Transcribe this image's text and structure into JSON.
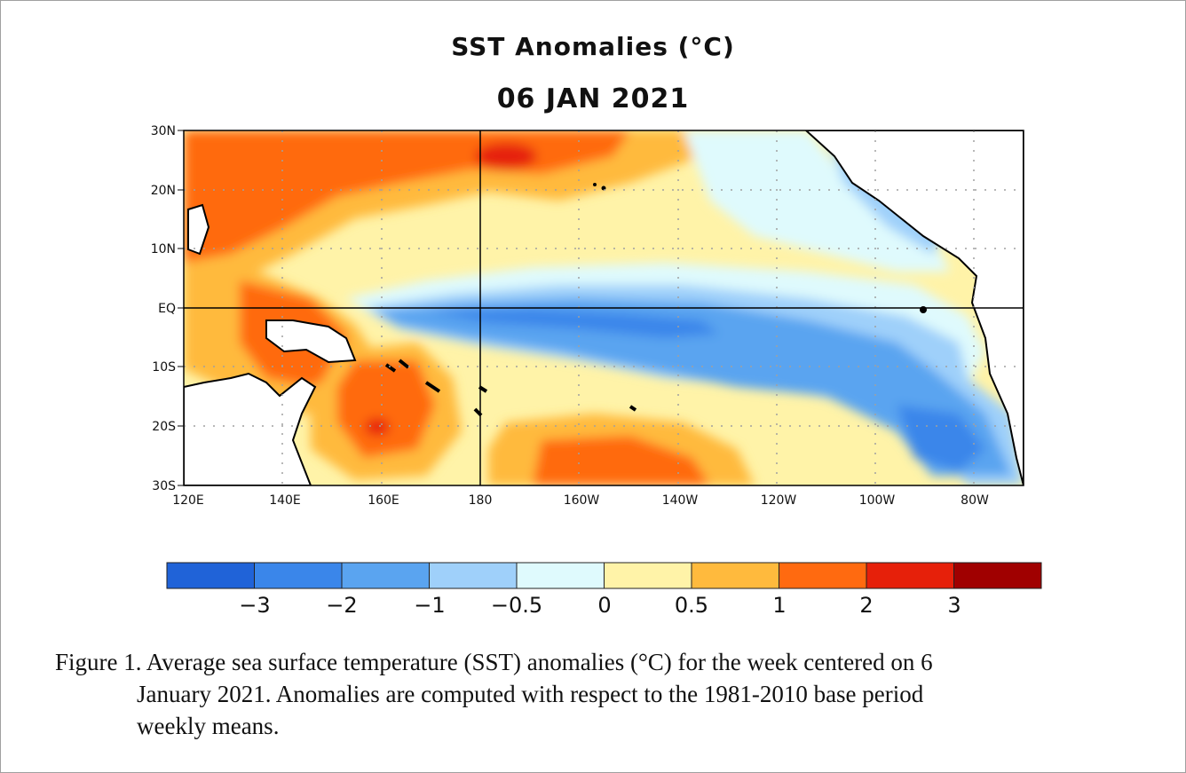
{
  "figure": {
    "title": "SST Anomalies (°C)",
    "date": "06 JAN 2021"
  },
  "map": {
    "lat_labels": [
      "30N",
      "20N",
      "10N",
      "EQ",
      "10S",
      "20S",
      "30S"
    ],
    "lon_labels": [
      "120E",
      "140E",
      "160E",
      "180",
      "160W",
      "140W",
      "120W",
      "100W",
      "80W"
    ],
    "extent": {
      "lon_min_east": 120,
      "lon_max_east": 290,
      "lat_min": -30,
      "lat_max": 30
    },
    "grid": "dotted",
    "land_color": "#ffffff"
  },
  "colorbar": {
    "colors": [
      "#2063d8",
      "#3a86ea",
      "#5aa4f0",
      "#9fd0fa",
      "#dffafd",
      "#fff3a8",
      "#ffba3d",
      "#ff6a10",
      "#e6200a",
      "#a00000"
    ],
    "tick_labels": [
      "−3",
      "−2",
      "−1",
      "−0.5",
      "0",
      "0.5",
      "1",
      "2",
      "3"
    ]
  },
  "caption": {
    "line1": "Figure  1. Average sea surface temperature (SST) anomalies  (°C) for the week centered on 6",
    "line2": "January 2021.   Anomalies  are computed  with  respect to the  1981-2010  base period",
    "line3": "weekly means."
  }
}
